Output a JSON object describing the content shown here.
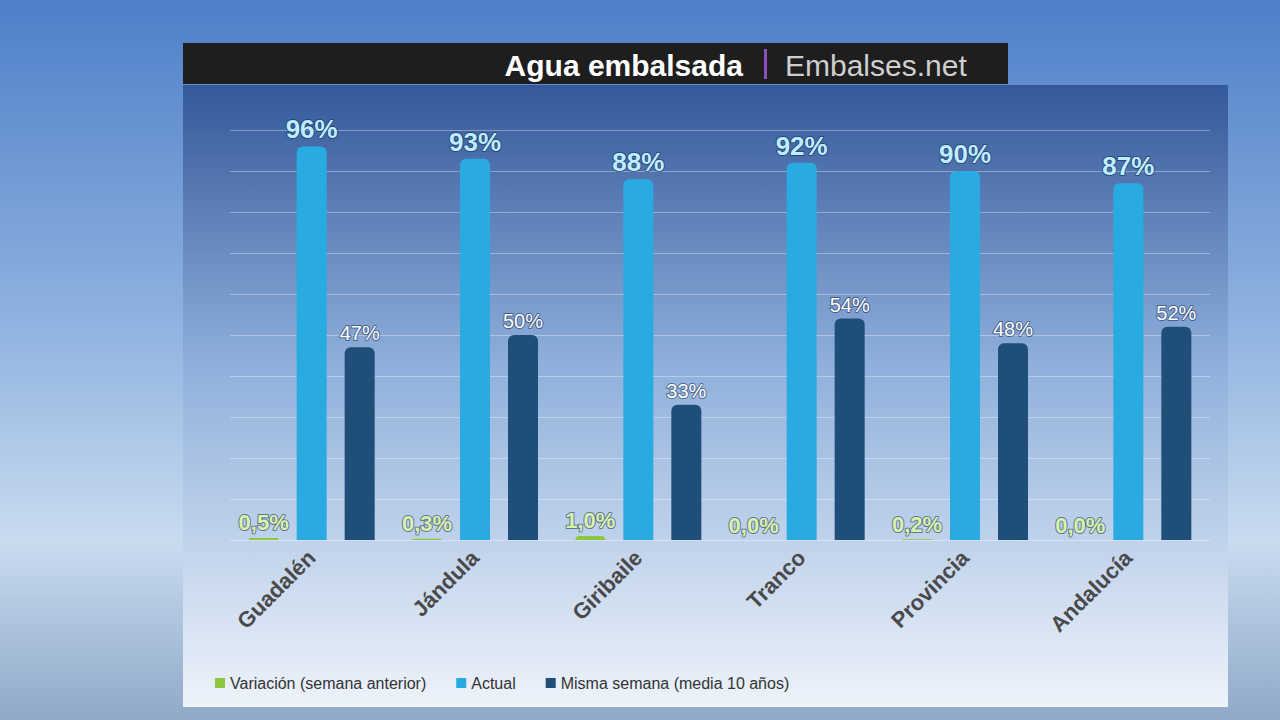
{
  "chart_data": {
    "type": "bar",
    "title": "Agua embalsada",
    "subtitle": "Embalses.net",
    "categories": [
      "Guadalén",
      "Jándula",
      "Giribaile",
      "Tranco",
      "Provincia",
      "Andalucía"
    ],
    "series": [
      {
        "name": "Variación (semana anterior)",
        "color": "#8dc63f",
        "values": [
          0.5,
          0.3,
          1.0,
          0.0,
          0.2,
          0.0
        ],
        "value_labels": [
          "0,5%",
          "0,3%",
          "1,0%",
          "0,0%",
          "0,2%",
          "0,0%"
        ]
      },
      {
        "name": "Actual",
        "color": "#29abe2",
        "values": [
          96,
          93,
          88,
          92,
          90,
          87
        ],
        "value_labels": [
          "96%",
          "93%",
          "88%",
          "92%",
          "90%",
          "87%"
        ]
      },
      {
        "name": "Misma semana (media 10 años)",
        "color": "#1f4e79",
        "values": [
          47,
          50,
          33,
          54,
          48,
          52
        ],
        "value_labels": [
          "47%",
          "50%",
          "33%",
          "54%",
          "48%",
          "52%"
        ]
      }
    ],
    "ylim": [
      0,
      100
    ],
    "yticks": [
      0,
      10,
      20,
      30,
      40,
      50,
      60,
      70,
      80,
      90,
      100
    ],
    "grid": true,
    "data_labels": true,
    "tick_labels": "x",
    "legend": "bottom"
  }
}
